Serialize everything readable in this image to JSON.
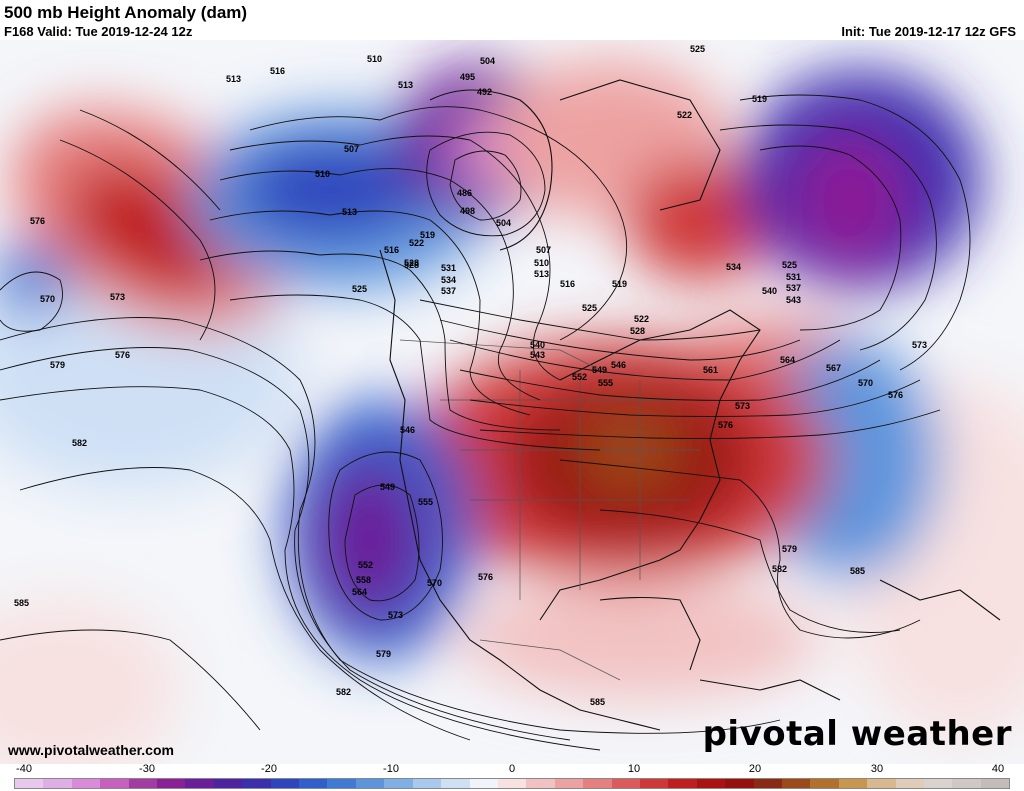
{
  "header": {
    "title": "500 mb Height Anomaly (dam)",
    "valid": "F168 Valid: Tue 2019-12-24 12z",
    "init": "Init: Tue 2019-12-17 12z GFS"
  },
  "footer": {
    "url": "www.pivotalweather.com",
    "brand": "pivotal weather"
  },
  "colorbar": {
    "ticks": [
      "-40",
      "-30",
      "-20",
      "-10",
      "0",
      "10",
      "20",
      "30",
      "40"
    ],
    "colors": [
      "#e8c8ec",
      "#e0aee6",
      "#d98ad8",
      "#c65fbe",
      "#a43aa4",
      "#8a1f96",
      "#6a1e9a",
      "#4e23a0",
      "#3b2fae",
      "#2f45bd",
      "#2e5fca",
      "#3f7ad4",
      "#5d95dd",
      "#80afe6",
      "#a8c8ee",
      "#cfe0f5",
      "#f0f4fa",
      "#f7e1e1",
      "#f2c2c2",
      "#eda2a2",
      "#e67f7f",
      "#dc5a5a",
      "#cf3838",
      "#c01f1f",
      "#ab1212",
      "#95100f",
      "#8a2a14",
      "#9c4a1a",
      "#b36f2c",
      "#c99650",
      "#d9b890",
      "#e0ccb8",
      "#dad2cc",
      "#cfc8c4",
      "#c4bcb8"
    ]
  },
  "contour_labels": [
    "513",
    "516",
    "510",
    "513",
    "495",
    "492",
    "504",
    "525",
    "522",
    "519",
    "507",
    "510",
    "513",
    "486",
    "498",
    "504",
    "519",
    "522",
    "528",
    "516",
    "525",
    "528",
    "531",
    "534",
    "537",
    "507",
    "510",
    "513",
    "516",
    "519",
    "525",
    "522",
    "528",
    "534",
    "525",
    "531",
    "537",
    "540",
    "543",
    "576",
    "570",
    "573",
    "576",
    "579",
    "582",
    "546",
    "549",
    "555",
    "552",
    "558",
    "564",
    "573",
    "570",
    "576",
    "579",
    "582",
    "585",
    "540",
    "543",
    "546",
    "549",
    "552",
    "555",
    "561",
    "564",
    "567",
    "570",
    "573",
    "576",
    "573",
    "576",
    "579",
    "582",
    "585",
    "585"
  ]
}
